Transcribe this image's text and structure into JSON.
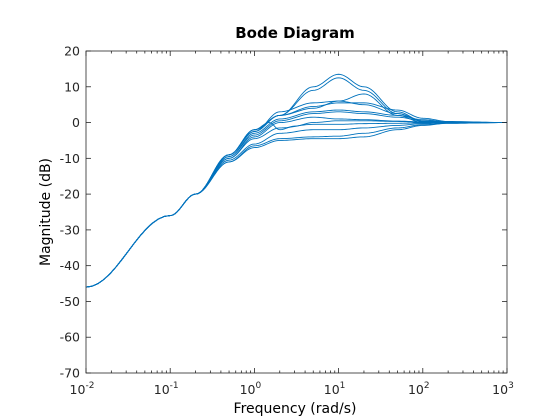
{
  "chart_data": {
    "type": "line",
    "title": "Bode Diagram",
    "xlabel": "Frequency  (rad/s)",
    "ylabel": "Magnitude (dB)",
    "x_scale": "log",
    "xlim": [
      0.01,
      1000
    ],
    "ylim": [
      -70,
      20
    ],
    "x_ticks": [
      {
        "base": "10",
        "exp": "-2",
        "value": 0.01
      },
      {
        "base": "10",
        "exp": "-1",
        "value": 0.1
      },
      {
        "base": "10",
        "exp": "0",
        "value": 1
      },
      {
        "base": "10",
        "exp": "1",
        "value": 10
      },
      {
        "base": "10",
        "exp": "2",
        "value": 100
      },
      {
        "base": "10",
        "exp": "3",
        "value": 1000
      }
    ],
    "y_ticks": [
      "20",
      "10",
      "0",
      "-10",
      "-20",
      "-30",
      "-40",
      "-50",
      "-60",
      "-70"
    ],
    "y_tick_values": [
      20,
      10,
      0,
      -10,
      -20,
      -30,
      -40,
      -50,
      -60,
      -70
    ],
    "grid": false,
    "line_color": "#0072bd",
    "series": [
      {
        "x": [
          0.01,
          0.1,
          0.2,
          0.5,
          1,
          2,
          5,
          10,
          20,
          50,
          100,
          200,
          1000
        ],
        "y": [
          -46,
          -26,
          -20,
          -11,
          -7,
          -5,
          -4.5,
          -4.5,
          -4,
          -2,
          -0.8,
          -0.2,
          0
        ]
      },
      {
        "x": [
          0.01,
          0.1,
          0.2,
          0.5,
          1,
          2,
          5,
          10,
          20,
          50,
          100,
          200,
          1000
        ],
        "y": [
          -46,
          -26,
          -20,
          -11,
          -6.5,
          -4.5,
          -4,
          -3.8,
          -3,
          -1.5,
          -0.6,
          -0.2,
          0
        ]
      },
      {
        "x": [
          0.01,
          0.1,
          0.2,
          0.5,
          1,
          2,
          5,
          10,
          20,
          50,
          100,
          200,
          1000
        ],
        "y": [
          -46,
          -26,
          -20,
          -10.5,
          -6,
          -3,
          -2,
          -2,
          -1.5,
          -0.8,
          -0.3,
          -0.1,
          0
        ]
      },
      {
        "x": [
          0.01,
          0.1,
          0.2,
          0.5,
          1,
          2,
          5,
          10,
          20,
          50,
          100,
          200,
          1000
        ],
        "y": [
          -46,
          -26,
          -20,
          -10,
          -4.5,
          -1.5,
          -0.5,
          -0.5,
          -0.3,
          -0.2,
          -0.1,
          0,
          0
        ]
      },
      {
        "x": [
          0.01,
          0.1,
          0.2,
          0.5,
          1,
          2,
          5,
          10,
          20,
          50,
          100,
          200,
          1000
        ],
        "y": [
          -46,
          -26,
          -20,
          -10,
          -4,
          0,
          1.5,
          1,
          0.8,
          0.4,
          0.2,
          0.1,
          0
        ]
      },
      {
        "x": [
          0.01,
          0.1,
          0.2,
          0.5,
          1,
          2,
          5,
          10,
          20,
          50,
          100,
          200,
          1000
        ],
        "y": [
          -46,
          -26,
          -20,
          -9.5,
          -3.5,
          0.5,
          2.5,
          3,
          2.5,
          1.5,
          0.5,
          0.1,
          0
        ]
      },
      {
        "x": [
          0.01,
          0.1,
          0.2,
          0.5,
          1,
          2,
          5,
          10,
          20,
          50,
          100,
          200,
          1000
        ],
        "y": [
          -46,
          -26,
          -20,
          -9.5,
          -3,
          1,
          3,
          3.5,
          3,
          2,
          0.8,
          0.2,
          0
        ]
      },
      {
        "x": [
          0.01,
          0.1,
          0.2,
          0.5,
          1,
          2,
          5,
          10,
          20,
          50,
          100,
          200,
          1000
        ],
        "y": [
          -46,
          -26,
          -20,
          -9,
          -2.5,
          2,
          4.5,
          5.5,
          5.5,
          3.5,
          1.2,
          0.3,
          0
        ]
      },
      {
        "x": [
          0.01,
          0.1,
          0.2,
          0.5,
          1,
          2,
          5,
          10,
          20,
          50,
          100,
          200,
          1000
        ],
        "y": [
          -46,
          -26,
          -20,
          -9,
          -2.5,
          3,
          5.5,
          6,
          5,
          2.5,
          0.5,
          0.1,
          0
        ]
      },
      {
        "x": [
          0.01,
          0.1,
          0.2,
          0.5,
          1,
          2,
          5,
          10,
          20,
          50,
          100,
          200,
          1000
        ],
        "y": [
          -46,
          -26,
          -20,
          -9,
          -2,
          2,
          4,
          6,
          8,
          2,
          0,
          0,
          0
        ]
      },
      {
        "x": [
          0.01,
          0.1,
          0.2,
          0.5,
          1,
          2,
          5,
          10,
          20,
          50,
          100,
          200,
          1000
        ],
        "y": [
          -46,
          -26,
          -20,
          -9,
          -2,
          2,
          9,
          12.5,
          9,
          2.5,
          0.3,
          0.1,
          0
        ]
      },
      {
        "x": [
          0.01,
          0.1,
          0.2,
          0.5,
          1,
          2,
          5,
          10,
          20,
          50,
          100,
          200,
          1000
        ],
        "y": [
          -46,
          -26,
          -20,
          -9,
          -2,
          2,
          10,
          13.5,
          10,
          3,
          0.4,
          0.1,
          0
        ]
      },
      {
        "x": [
          0.01,
          0.1,
          0.2,
          0.5,
          1,
          1.5,
          2,
          3,
          5,
          10,
          20,
          50,
          100,
          200,
          1000
        ],
        "y": [
          -46,
          -26,
          -20,
          -9,
          -2,
          0,
          -2,
          -1,
          0,
          0.5,
          0.5,
          0.3,
          0.1,
          0,
          0
        ]
      }
    ]
  }
}
